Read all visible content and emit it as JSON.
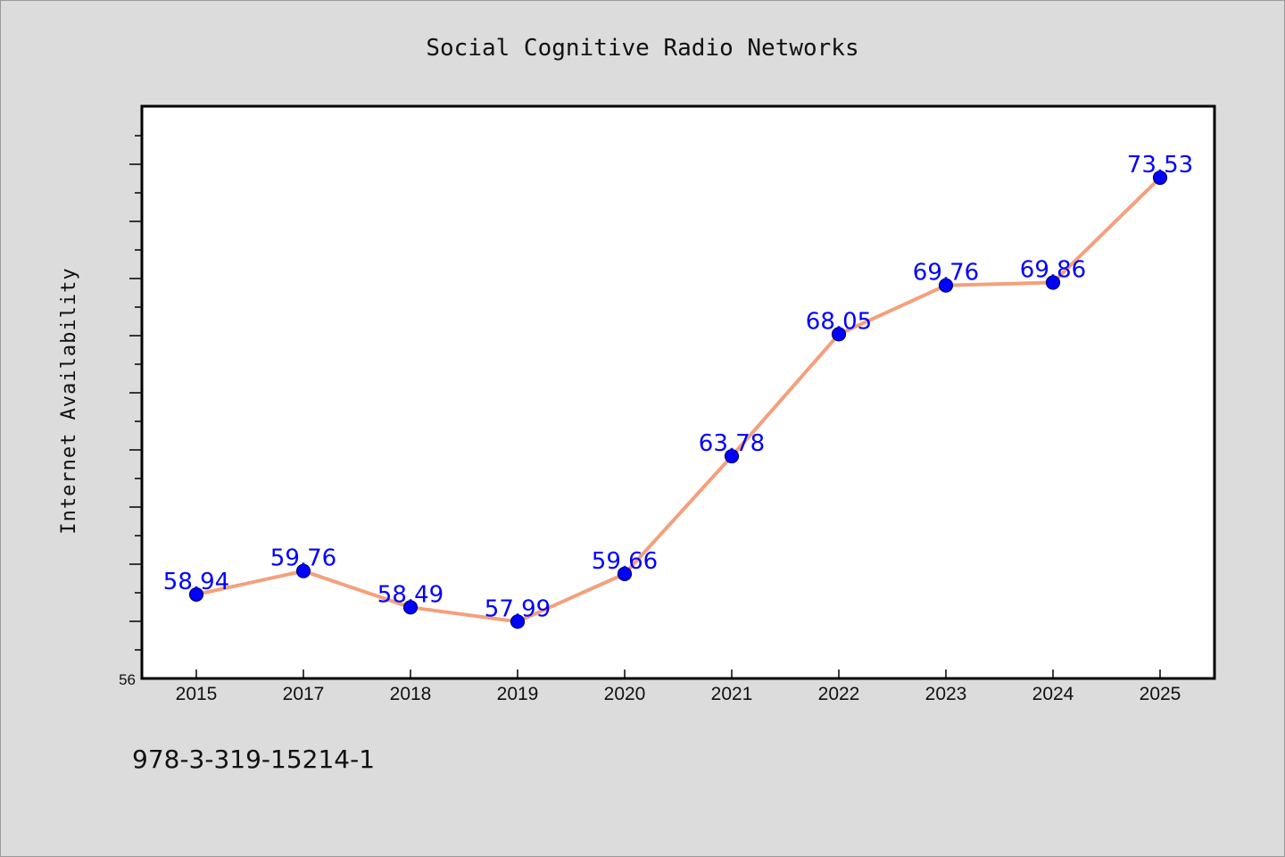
{
  "footer": {
    "code": "978-3-319-15214-1"
  },
  "colors": {
    "background": "#dcdcdc",
    "plot_background": "#ffffff",
    "line": "#f4a07c",
    "marker": "#0000ff",
    "data_label": "#0000ff"
  },
  "chart_data": {
    "type": "line",
    "title": "Social Cognitive Radio Networks",
    "xlabel": "",
    "ylabel": "Internet Availability",
    "categories": [
      "2015",
      "2017",
      "2018",
      "2019",
      "2020",
      "2021",
      "2022",
      "2023",
      "2024",
      "2025"
    ],
    "series": [
      {
        "values": [
          58.94,
          59.76,
          58.49,
          57.99,
          59.66,
          63.78,
          68.05,
          69.76,
          69.86,
          73.53
        ]
      }
    ],
    "data_labels": [
      "58.94",
      "59.76",
      "58.49",
      "57.99",
      "59.66",
      "63.78",
      "68.05",
      "69.76",
      "69.86",
      "73.53"
    ],
    "y_min_label": "56",
    "ylim": [
      56,
      76
    ],
    "grid": false,
    "legend": "none"
  }
}
